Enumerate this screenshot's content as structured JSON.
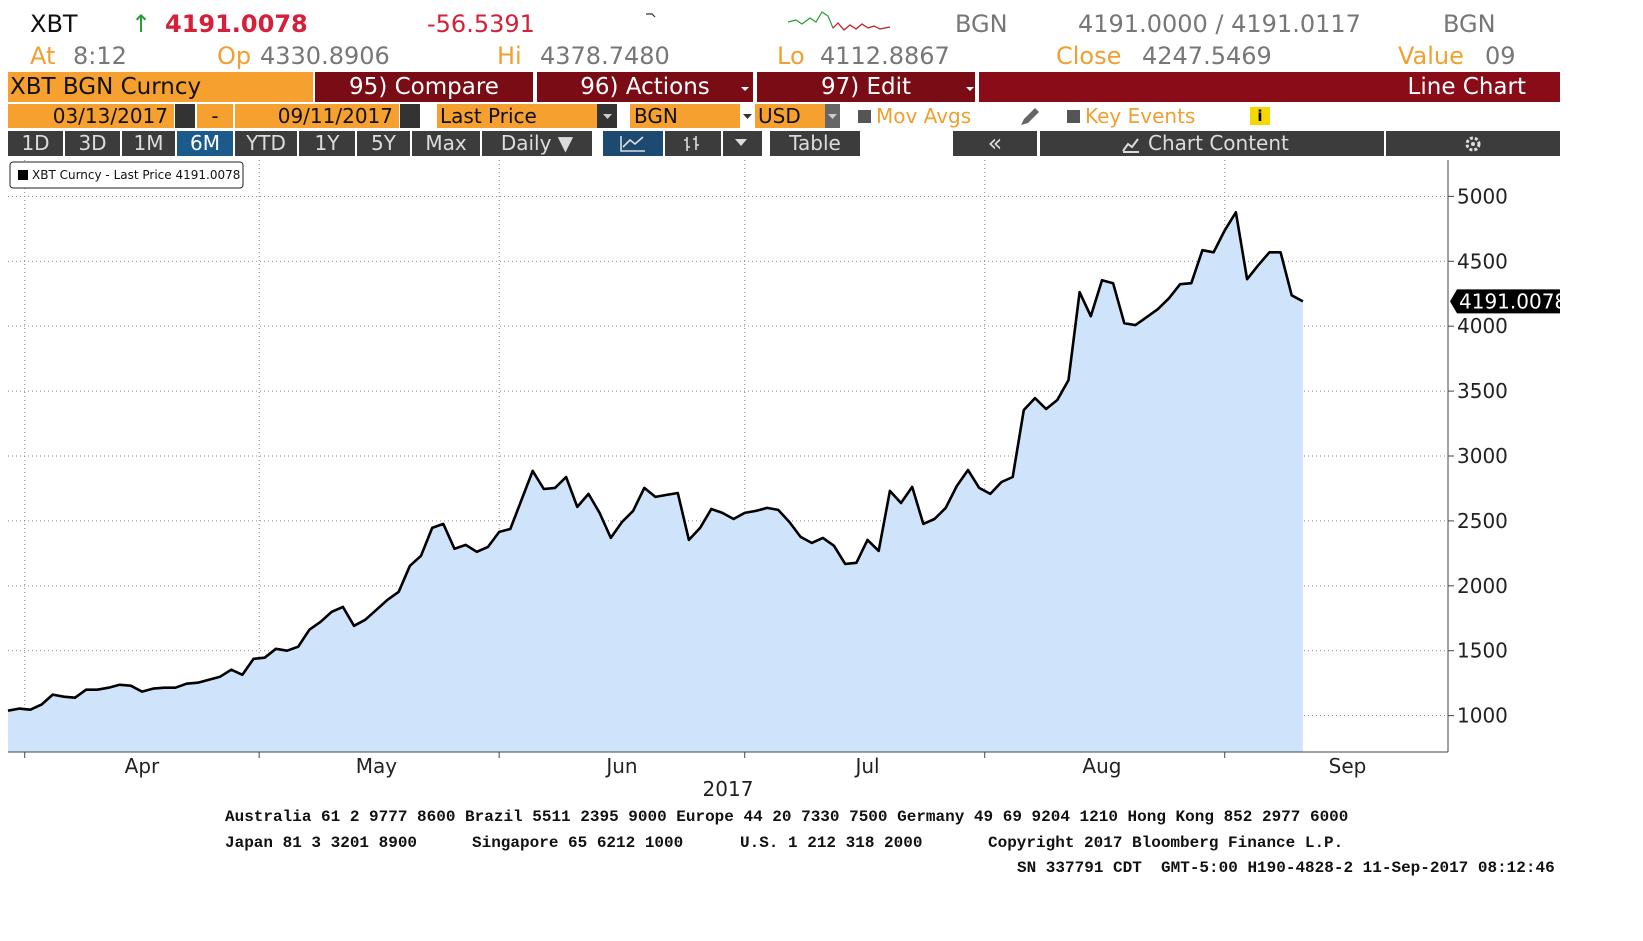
{
  "header": {
    "ticker": "XBT",
    "arrow": "↑",
    "price": "4191.0078",
    "change": "-56.5391",
    "currency": "BGN",
    "bid_ask": "4191.0000 / 4191.0117",
    "currency2": "BGN",
    "stats": [
      {
        "label": "At",
        "value": "8:12"
      },
      {
        "label": "Op",
        "value": "4330.8906"
      },
      {
        "label": "Hi",
        "value": "4378.7480"
      },
      {
        "label": "Lo",
        "value": "4112.8867"
      },
      {
        "label": "Close",
        "value": "4247.5469"
      },
      {
        "label": "Value",
        "value": "09"
      }
    ]
  },
  "toolbar": {
    "security": "XBT BGN Curncy",
    "menus": [
      "95) Compare",
      "96) Actions",
      "97) Edit"
    ],
    "chart_type": "Line Chart",
    "start_date": "03/13/2017",
    "dash": "-",
    "end_date": "09/11/2017",
    "field": "Last Price",
    "source": "BGN",
    "currency": "USD",
    "mov_avgs": "Mov Avgs",
    "key_events": "Key Events",
    "info": "i",
    "periods": [
      "1D",
      "3D",
      "1M",
      "6M",
      "YTD",
      "1Y",
      "5Y",
      "Max"
    ],
    "frequency": "Daily ▼",
    "table": "Table",
    "collapse": "«",
    "chart_content": "Chart Content"
  },
  "chart_data": {
    "type": "line",
    "x_label": "2017",
    "grid": true,
    "ylim": [
      720,
      5280
    ],
    "yticks": [
      1000,
      1500,
      2000,
      2500,
      3000,
      3500,
      4000,
      4500,
      5000
    ],
    "categories": [
      null,
      null,
      null,
      null,
      null,
      null,
      null,
      null,
      null,
      null,
      null,
      null,
      "Apr",
      null,
      null,
      null,
      null,
      null,
      null,
      null,
      null,
      null,
      null,
      null,
      null,
      null,
      null,
      null,
      null,
      null,
      null,
      null,
      null,
      "May",
      null,
      null,
      null,
      null,
      null,
      null,
      null,
      null,
      null,
      null,
      null,
      null,
      null,
      null,
      null,
      null,
      null,
      null,
      null,
      null,
      null,
      "Jun",
      null,
      null,
      null,
      null,
      null,
      null,
      null,
      null,
      null,
      null,
      null,
      null,
      null,
      null,
      null,
      null,
      null,
      null,
      null,
      null,
      null,
      "Jul",
      null,
      null,
      null,
      null,
      null,
      null,
      null,
      null,
      null,
      null,
      null,
      null,
      null,
      null,
      null,
      null,
      null,
      null,
      null,
      null,
      "Aug",
      null,
      null,
      null,
      null,
      null,
      null,
      null,
      null,
      null,
      null,
      null,
      null,
      null,
      null,
      null,
      null,
      null,
      null,
      null,
      null,
      null,
      "Sep",
      null,
      null,
      null,
      null,
      null,
      null,
      null,
      null,
      null
    ],
    "series": [
      {
        "name": "XBT Curncy - Last Price 4191.0078",
        "color": "#000000",
        "fill": "#cfe4fa",
        "values": [
          1038,
          1054,
          1046,
          1085,
          1162,
          1146,
          1138,
          1200,
          1200,
          1215,
          1238,
          1231,
          1185,
          1208,
          1215,
          1215,
          1246,
          1254,
          1277,
          1300,
          1354,
          1315,
          1438,
          1446,
          1515,
          1500,
          1531,
          1662,
          1723,
          1800,
          1838,
          1692,
          1738,
          1815,
          1892,
          1954,
          2154,
          2231,
          2446,
          2477,
          2285,
          2315,
          2262,
          2300,
          2415,
          2438,
          2662,
          2885,
          2746,
          2754,
          2838,
          2608,
          2708,
          2562,
          2369,
          2492,
          2577,
          2754,
          2685,
          2700,
          2715,
          2354,
          2446,
          2592,
          2562,
          2515,
          2562,
          2577,
          2600,
          2585,
          2492,
          2377,
          2331,
          2369,
          2308,
          2169,
          2177,
          2354,
          2269,
          2731,
          2638,
          2762,
          2477,
          2515,
          2600,
          2769,
          2892,
          2754,
          2708,
          2800,
          2838,
          3354,
          3446,
          3362,
          3431,
          3585,
          4262,
          4077,
          4354,
          4331,
          4023,
          4008,
          4069,
          4131,
          4215,
          4323,
          4331,
          4585,
          4569,
          4738,
          4877,
          4362,
          4469,
          4569,
          4569,
          4238,
          4191.0078,
          null,
          null,
          null,
          null,
          null,
          null,
          null,
          null,
          null,
          null,
          null,
          null,
          null
        ]
      }
    ]
  },
  "footer": {
    "line1": "Australia 61 2 9777 8600 Brazil 5511 2395 9000 Europe 44 20 7330 7500 Germany 49 69 9204 1210 Hong Kong 852 2977 6000",
    "line2": [
      "Japan 81 3 3201 8900",
      "Singapore 65 6212 1000",
      "U.S. 1 212 318 2000",
      "Copyright 2017 Bloomberg Finance L.P."
    ],
    "line3": "SN 337791 CDT  GMT-5:00 H190-4828-2 11-Sep-2017 08:12:46"
  }
}
